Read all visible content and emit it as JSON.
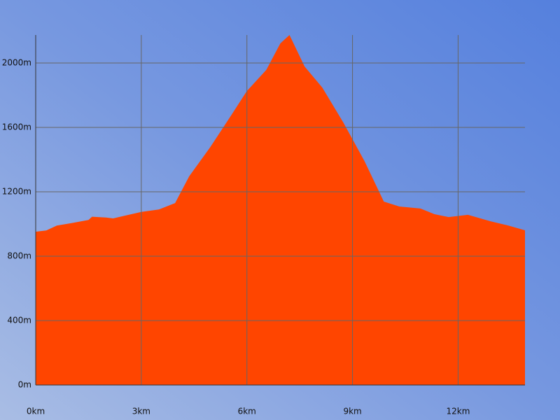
{
  "chart_data": {
    "type": "area",
    "x": [
      0,
      0.3,
      0.6,
      1.0,
      1.5,
      1.6,
      2.0,
      2.2,
      2.5,
      3.0,
      3.5,
      3.96,
      4.36,
      4.96,
      5.55,
      6.0,
      6.55,
      6.95,
      7.21,
      7.64,
      8.14,
      8.74,
      9.34,
      9.89,
      10.33,
      10.93,
      11.33,
      11.73,
      12.28,
      12.92,
      13.42,
      13.9
    ],
    "values": [
      952,
      960,
      990,
      1005,
      1025,
      1045,
      1040,
      1035,
      1050,
      1075,
      1090,
      1130,
      1296,
      1478,
      1674,
      1826,
      1957,
      2122,
      2174,
      1978,
      1848,
      1630,
      1391,
      1139,
      1109,
      1096,
      1061,
      1043,
      1057,
      1017,
      991,
      961
    ],
    "color": "#ff4500",
    "xlim": [
      0,
      13.9
    ],
    "xticks": [
      {
        "value": 0,
        "label": "0km"
      },
      {
        "value": 3,
        "label": "3km"
      },
      {
        "value": 6,
        "label": "6km"
      },
      {
        "value": 9,
        "label": "9km"
      },
      {
        "value": 12,
        "label": "12km"
      }
    ],
    "ylim": [
      0,
      2174
    ],
    "yticks": [
      {
        "value": 0,
        "label": "0m"
      },
      {
        "value": 400,
        "label": "400m"
      },
      {
        "value": 800,
        "label": "800m"
      },
      {
        "value": 1200,
        "label": "1200m"
      },
      {
        "value": 1600,
        "label": "1600m"
      },
      {
        "value": 2000,
        "label": "2000m"
      }
    ],
    "grid": true
  }
}
